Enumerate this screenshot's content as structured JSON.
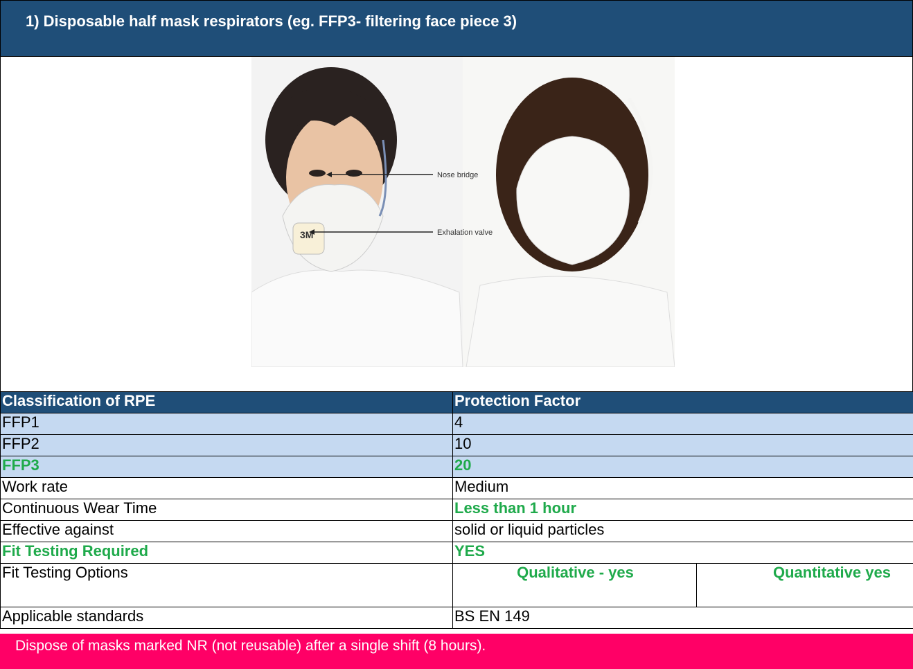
{
  "header": {
    "title": "1)  Disposable half mask respirators (eg. FFP3-  filtering face piece 3)"
  },
  "image": {
    "labels": [
      "Nose bridge",
      "Exhalation valve"
    ]
  },
  "table": {
    "header": [
      "Classification of RPE",
      "Protection Factor"
    ],
    "rows": [
      [
        "FFP1",
        "4"
      ],
      [
        "FFP2",
        "10"
      ],
      [
        "FFP3",
        "20"
      ],
      [
        "Work rate",
        "Medium"
      ],
      [
        "Continuous Wear Time",
        "Less than 1 hour"
      ],
      [
        "Effective against",
        "solid or liquid particles"
      ],
      [
        "Fit Testing Required",
        "YES"
      ],
      [
        "Fit Testing Options",
        "Qualitative - yes",
        "Quantitative yes"
      ],
      [
        "Applicable standards",
        "BS EN 149"
      ]
    ]
  },
  "footer": {
    "note": "Dispose of masks marked NR (not reusable) after a single shift (8 hours)."
  }
}
